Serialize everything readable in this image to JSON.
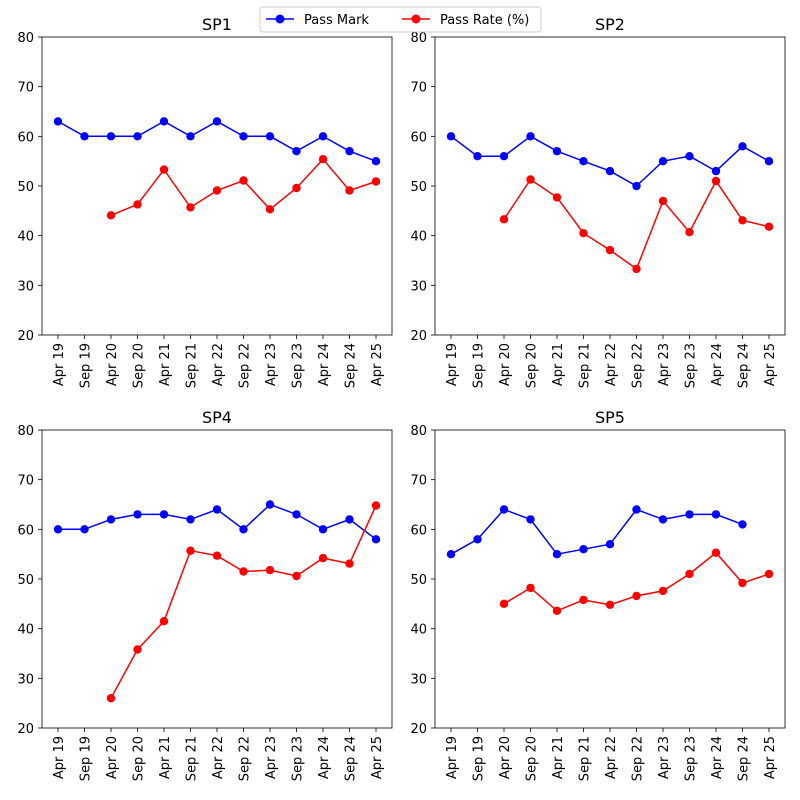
{
  "legend": {
    "placement": "top-center",
    "entries": [
      {
        "label": "Pass Mark",
        "color": "#0000ff"
      },
      {
        "label": "Pass Rate (%)",
        "color": "#ff0000"
      }
    ]
  },
  "chart_data": [
    {
      "type": "line",
      "title": "SP1",
      "x": [
        "Apr 19",
        "Sep 19",
        "Apr 20",
        "Sep 20",
        "Apr 21",
        "Sep 21",
        "Apr 22",
        "Sep 22",
        "Apr 23",
        "Sep 23",
        "Apr 24",
        "Sep 24",
        "Apr 25"
      ],
      "ylim": [
        20,
        80
      ],
      "yticks": [
        20,
        30,
        40,
        50,
        60,
        70,
        80
      ],
      "series": [
        {
          "name": "Pass Mark",
          "color": "#0000ff",
          "values": [
            63,
            60,
            60,
            60,
            63,
            60,
            63,
            60,
            60,
            57,
            60,
            57,
            55
          ]
        },
        {
          "name": "Pass Rate (%)",
          "color": "#ff0000",
          "values": [
            null,
            null,
            44.1,
            46.3,
            53.3,
            45.7,
            49.1,
            51.1,
            45.3,
            49.6,
            55.4,
            49.1,
            50.9
          ]
        }
      ]
    },
    {
      "type": "line",
      "title": "SP2",
      "x": [
        "Apr 19",
        "Sep 19",
        "Apr 20",
        "Sep 20",
        "Apr 21",
        "Sep 21",
        "Apr 22",
        "Sep 22",
        "Apr 23",
        "Sep 23",
        "Apr 24",
        "Sep 24",
        "Apr 25"
      ],
      "ylim": [
        20,
        80
      ],
      "yticks": [
        20,
        30,
        40,
        50,
        60,
        70,
        80
      ],
      "series": [
        {
          "name": "Pass Mark",
          "color": "#0000ff",
          "values": [
            60,
            56,
            56,
            60,
            57,
            55,
            53,
            50,
            55,
            56,
            53,
            58,
            55
          ]
        },
        {
          "name": "Pass Rate (%)",
          "color": "#ff0000",
          "values": [
            null,
            null,
            43.3,
            51.3,
            47.7,
            40.5,
            37.1,
            33.3,
            47.0,
            40.7,
            51.0,
            43.1,
            41.8
          ]
        }
      ]
    },
    {
      "type": "line",
      "title": "SP4",
      "x": [
        "Apr 19",
        "Sep 19",
        "Apr 20",
        "Sep 20",
        "Apr 21",
        "Sep 21",
        "Apr 22",
        "Sep 22",
        "Apr 23",
        "Sep 23",
        "Apr 24",
        "Sep 24",
        "Apr 25"
      ],
      "ylim": [
        20,
        80
      ],
      "yticks": [
        20,
        30,
        40,
        50,
        60,
        70,
        80
      ],
      "series": [
        {
          "name": "Pass Mark",
          "color": "#0000ff",
          "values": [
            60,
            60,
            62,
            63,
            63,
            62,
            64,
            60,
            65,
            63,
            60,
            62,
            58
          ]
        },
        {
          "name": "Pass Rate (%)",
          "color": "#ff0000",
          "values": [
            null,
            null,
            26.0,
            35.8,
            41.5,
            55.7,
            54.7,
            51.5,
            51.8,
            50.6,
            54.2,
            53.1,
            64.8
          ]
        }
      ]
    },
    {
      "type": "line",
      "title": "SP5",
      "x": [
        "Apr 19",
        "Sep 19",
        "Apr 20",
        "Sep 20",
        "Apr 21",
        "Sep 21",
        "Apr 22",
        "Sep 22",
        "Apr 23",
        "Sep 23",
        "Apr 24",
        "Sep 24",
        "Apr 25"
      ],
      "ylim": [
        20,
        80
      ],
      "yticks": [
        20,
        30,
        40,
        50,
        60,
        70,
        80
      ],
      "series": [
        {
          "name": "Pass Mark",
          "color": "#0000ff",
          "values": [
            55,
            58,
            64,
            62,
            55,
            56,
            57,
            64,
            62,
            63,
            63,
            61,
            null
          ]
        },
        {
          "name": "Pass Rate (%)",
          "color": "#ff0000",
          "values": [
            null,
            null,
            45.0,
            48.2,
            43.6,
            45.8,
            44.8,
            46.6,
            47.6,
            51.0,
            55.3,
            49.2,
            51.0
          ]
        }
      ]
    }
  ]
}
